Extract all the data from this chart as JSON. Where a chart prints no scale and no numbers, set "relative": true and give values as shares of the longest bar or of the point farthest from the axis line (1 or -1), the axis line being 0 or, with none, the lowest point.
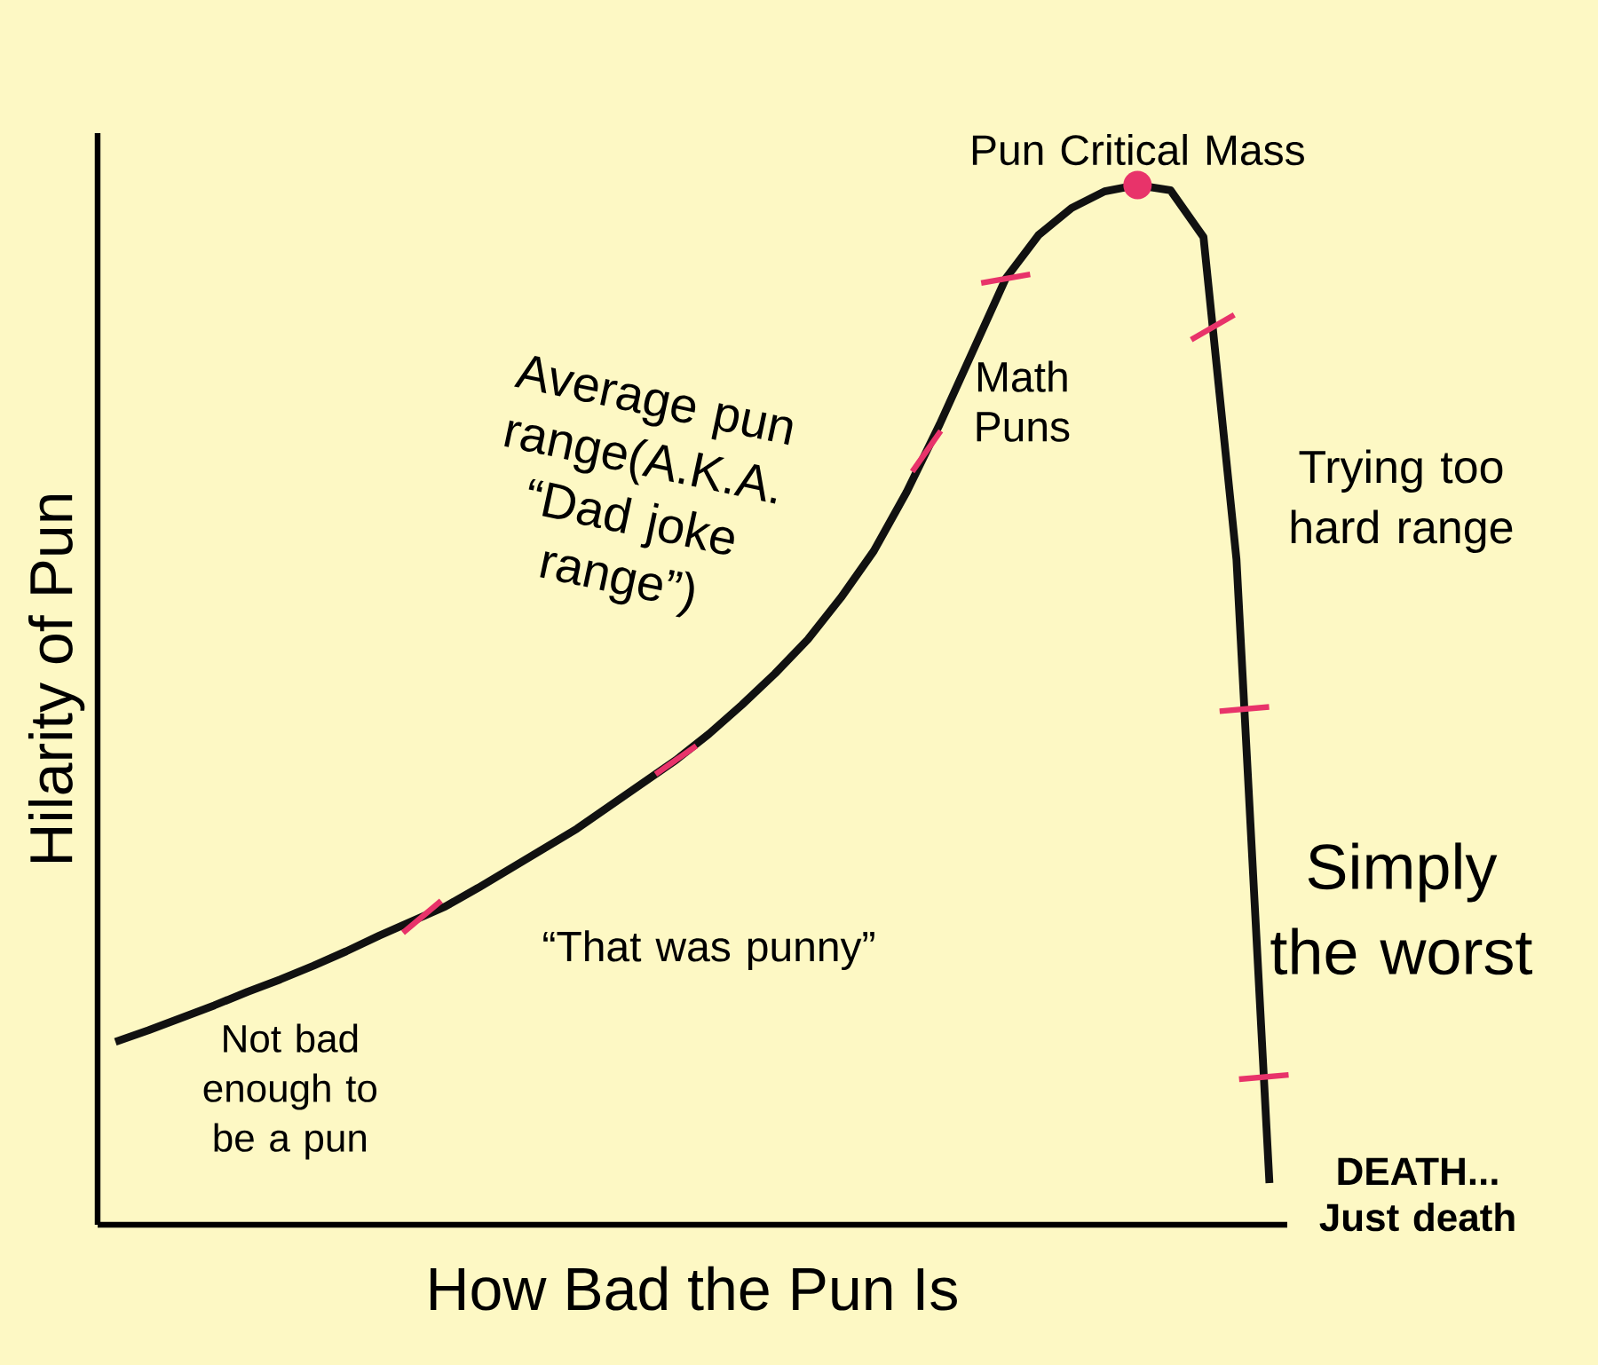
{
  "chart_data": {
    "type": "line",
    "relative": true,
    "xlabel": "How Bad the Pun Is",
    "ylabel": "Hilarity of Pun",
    "categories": [
      null,
      null,
      null,
      null,
      null,
      null,
      null,
      null,
      null,
      null,
      null,
      null,
      null,
      null,
      null,
      null,
      null,
      null,
      null,
      null,
      null,
      null,
      null,
      null,
      null,
      null,
      null,
      null,
      null,
      null,
      null,
      null,
      null,
      null,
      null,
      null
    ],
    "series": [
      {
        "color": "#111111",
        "values": [
          0.176,
          0.187,
          0.199,
          0.211,
          0.224,
          0.236,
          0.249,
          0.263,
          0.278,
          0.292,
          0.306,
          0.324,
          0.343,
          0.362,
          0.381,
          0.403,
          0.425,
          0.447,
          0.472,
          0.5,
          0.53,
          0.563,
          0.603,
          0.648,
          0.705,
          0.77,
          0.84,
          0.91,
          0.952,
          0.978,
          0.994,
          1,
          0.995,
          0.95,
          0.64,
          0.04
        ]
      }
    ],
    "annotations": [
      "Pun Critical Mass",
      "Math Puns",
      "Average pun range(A.K.A. “Dad joke range”)",
      "Trying too hard range",
      "“That was punny”",
      "Simply the worst",
      "Not bad enough to be a pun",
      "DEATH... Just death"
    ]
  }
}
